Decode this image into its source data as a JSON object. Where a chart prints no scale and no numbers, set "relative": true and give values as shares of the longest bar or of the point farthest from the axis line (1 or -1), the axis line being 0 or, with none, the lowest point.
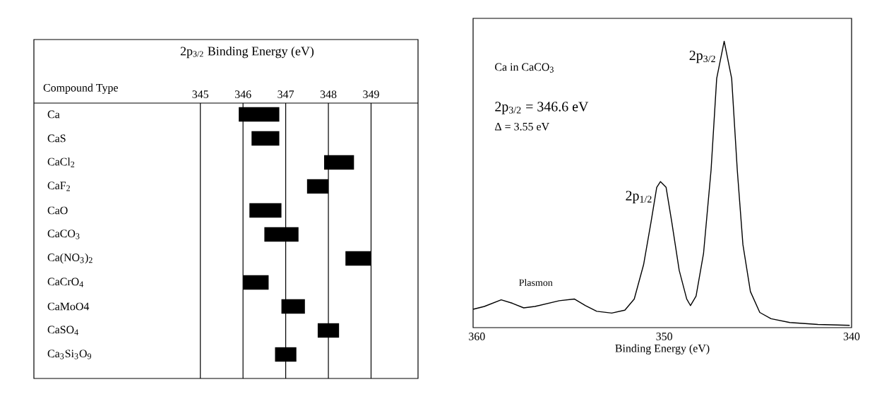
{
  "chart_data": [
    {
      "type": "bar",
      "orientation": "horizontal",
      "title": "2p$_{3/2}$ Binding Energy (eV)",
      "ylabel": "Compound Type",
      "categories": [
        "Ca",
        "CaS",
        "CaCl$_{2}$",
        "CaF$_{2}$",
        "CaO",
        "CaCO$_{3}$",
        "Ca(NO$_{3}$)$_{2}$",
        "CaCrO$_{4}$",
        "CaMoO4",
        "CaSO$_{4}$",
        "Ca$_{3}$Si$_{3}$O$_{9}$"
      ],
      "base": [
        345.9,
        346.2,
        347.9,
        347.5,
        346.15,
        346.5,
        348.4,
        346.0,
        346.9,
        347.75,
        346.75
      ],
      "values": [
        0.95,
        0.65,
        0.7,
        0.5,
        0.75,
        0.8,
        0.6,
        0.6,
        0.55,
        0.5,
        0.5
      ],
      "color": "#000000",
      "xlim": [
        341.1,
        350.1
      ],
      "xticks": [
        345,
        346,
        347,
        348,
        349
      ],
      "grid": "x"
    },
    {
      "type": "line",
      "relative": true,
      "xlabel": "Binding Energy (eV)",
      "color": "#000000",
      "tick_labels": "x",
      "x": [
        360.2,
        359.6,
        358.7,
        358.1,
        357.5,
        356.9,
        355.6,
        354.8,
        354.2,
        353.6,
        352.8,
        352.1,
        351.6,
        351.1,
        350.7,
        350.4,
        350.2,
        349.9,
        349.6,
        349.2,
        348.8,
        348.6,
        348.3,
        347.9,
        347.5,
        347.2,
        346.8,
        346.4,
        346.1,
        345.8,
        345.4,
        344.9,
        344.3,
        343.3,
        341.8,
        340.1
      ],
      "values": [
        0.064,
        0.074,
        0.097,
        0.085,
        0.069,
        0.074,
        0.094,
        0.1,
        0.077,
        0.057,
        0.051,
        0.061,
        0.1,
        0.22,
        0.37,
        0.49,
        0.51,
        0.49,
        0.37,
        0.2,
        0.1,
        0.077,
        0.11,
        0.26,
        0.55,
        0.87,
        1,
        0.87,
        0.55,
        0.29,
        0.126,
        0.053,
        0.031,
        0.018,
        0.011,
        0.008
      ],
      "xlim": [
        360.2,
        340
      ],
      "xticks": [
        360,
        350,
        340
      ],
      "annotations": [
        "Ca in CaCO$_{3}$",
        "2p$_{3/2}$ = 346.6 eV",
        "Δ = 3.55 eV",
        "Plasmon",
        {
          "text": "2p$_{3/2}$",
          "x": 346.8,
          "y": 1
        },
        {
          "text": "2p$_{1/2}$",
          "x": 350.2,
          "y": 0.51
        }
      ]
    }
  ]
}
